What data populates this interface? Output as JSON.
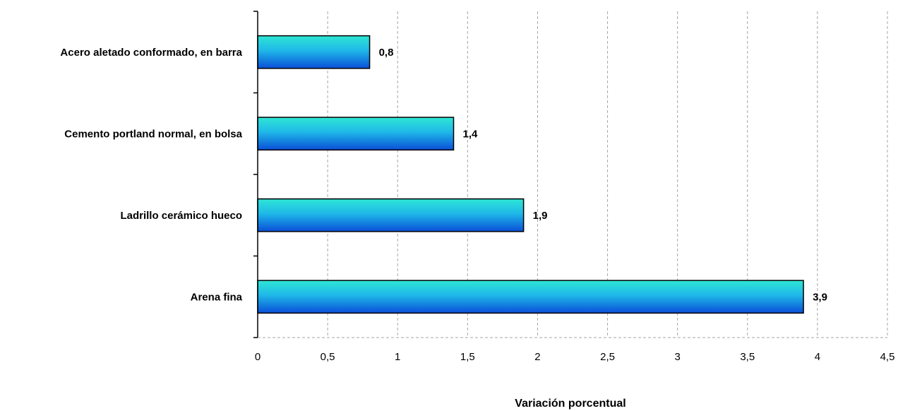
{
  "chart_data": {
    "type": "bar",
    "orientation": "horizontal",
    "categories": [
      "Acero aletado conformado, en barra",
      "Cemento portland normal, en bolsa",
      "Ladrillo cerámico hueco",
      "Arena fina"
    ],
    "values": [
      0.8,
      1.4,
      1.9,
      3.9
    ],
    "data_labels": [
      "0,8",
      "1,4",
      "1,9",
      "3,9"
    ],
    "xlabel": "Variación porcentual",
    "xlim": [
      0,
      4.5
    ],
    "x_ticks": [
      0,
      0.5,
      1,
      1.5,
      2,
      2.5,
      3,
      3.5,
      4,
      4.5
    ],
    "x_tick_labels": [
      "0",
      "0,5",
      "1",
      "1,5",
      "2",
      "2,5",
      "3",
      "3,5",
      "4",
      "4,5"
    ],
    "grid": "vertical-dashed",
    "legend": "none",
    "colors": {
      "bar_top": "#2ee6d4",
      "bar_mid": "#1fb8e8",
      "bar_bottom": "#0a4fd8",
      "bar_stroke": "#000000",
      "grid": "#a6a6a6"
    }
  }
}
